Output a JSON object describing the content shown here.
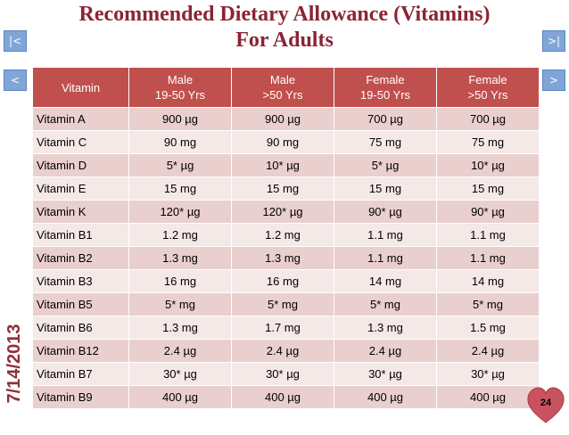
{
  "slide": {
    "title_line1": "Recommended Dietary Allowance (Vitamins)",
    "title_line2": "For Adults",
    "date": "7/14/2013",
    "page_number": "24"
  },
  "nav": {
    "first": "|<",
    "last": ">|",
    "prev": "<",
    "next": ">"
  },
  "table": {
    "headers": [
      {
        "line1": "Vitamin",
        "line2": ""
      },
      {
        "line1": "Male",
        "line2": "19-50 Yrs"
      },
      {
        "line1": "Male",
        "line2": ">50 Yrs"
      },
      {
        "line1": "Female",
        "line2": "19-50 Yrs"
      },
      {
        "line1": "Female",
        "line2": ">50 Yrs"
      }
    ],
    "rows": [
      [
        "Vitamin A",
        "900 µg",
        "900 µg",
        "700 µg",
        "700 µg"
      ],
      [
        "Vitamin C",
        "90 mg",
        "90 mg",
        "75 mg",
        "75 mg"
      ],
      [
        "Vitamin D",
        "5* µg",
        "10* µg",
        "5* µg",
        "10* µg"
      ],
      [
        "Vitamin E",
        "15 mg",
        "15 mg",
        "15 mg",
        "15 mg"
      ],
      [
        "Vitamin K",
        "120* µg",
        "120* µg",
        "90* µg",
        "90* µg"
      ],
      [
        "Vitamin B1",
        "1.2 mg",
        "1.2 mg",
        "1.1 mg",
        "1.1 mg"
      ],
      [
        "Vitamin B2",
        "1.3 mg",
        "1.3 mg",
        "1.1 mg",
        "1.1 mg"
      ],
      [
        "Vitamin B3",
        "16 mg",
        "16 mg",
        "14 mg",
        "14 mg"
      ],
      [
        "Vitamin B5",
        "5* mg",
        "5* mg",
        "5* mg",
        "5* mg"
      ],
      [
        "Vitamin B6",
        "1.3 mg",
        "1.7 mg",
        "1.3 mg",
        "1.5 mg"
      ],
      [
        "Vitamin B12",
        "2.4 µg",
        "2.4 µg",
        "2.4 µg",
        "2.4 µg"
      ],
      [
        "Vitamin B7",
        "30* µg",
        "30* µg",
        "30* µg",
        "30* µg"
      ],
      [
        "Vitamin B9",
        "400 µg",
        "400 µg",
        "400 µg",
        "400 µg"
      ]
    ]
  },
  "colors": {
    "header_bg": "#c0504d",
    "row_dark": "#e9cfce",
    "row_light": "#f5e9e8",
    "title": "#8b2434",
    "nav_button": "#7fa6d6",
    "heart": "#c9525f"
  },
  "icons": {
    "page_badge": "heart-icon"
  }
}
